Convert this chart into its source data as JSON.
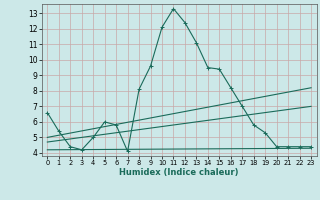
{
  "xlabel": "Humidex (Indice chaleur)",
  "bg_color": "#cce8e8",
  "grid_color": "#c8a8a8",
  "line_color": "#1a6b5a",
  "xlim": [
    -0.5,
    23.5
  ],
  "ylim": [
    3.8,
    13.6
  ],
  "xticks": [
    0,
    1,
    2,
    3,
    4,
    5,
    6,
    7,
    8,
    9,
    10,
    11,
    12,
    13,
    14,
    15,
    16,
    17,
    18,
    19,
    20,
    21,
    22,
    23
  ],
  "yticks": [
    4,
    5,
    6,
    7,
    8,
    9,
    10,
    11,
    12,
    13
  ],
  "line1_x": [
    0,
    1,
    2,
    3,
    4,
    5,
    6,
    7,
    8,
    9,
    10,
    11,
    12,
    13,
    14,
    15,
    16,
    17,
    18,
    19,
    20,
    21,
    22,
    23
  ],
  "line1_y": [
    6.6,
    5.4,
    4.4,
    4.2,
    5.0,
    6.0,
    5.8,
    4.1,
    8.1,
    9.6,
    12.1,
    13.3,
    12.4,
    11.1,
    9.5,
    9.4,
    8.2,
    7.0,
    5.8,
    5.3,
    4.4,
    4.4,
    4.4,
    4.4
  ],
  "line2_x": [
    0,
    23
  ],
  "line2_y": [
    5.0,
    8.2
  ],
  "line3_x": [
    0,
    23
  ],
  "line3_y": [
    4.7,
    7.0
  ],
  "line4_x": [
    0,
    23
  ],
  "line4_y": [
    4.2,
    4.3
  ]
}
